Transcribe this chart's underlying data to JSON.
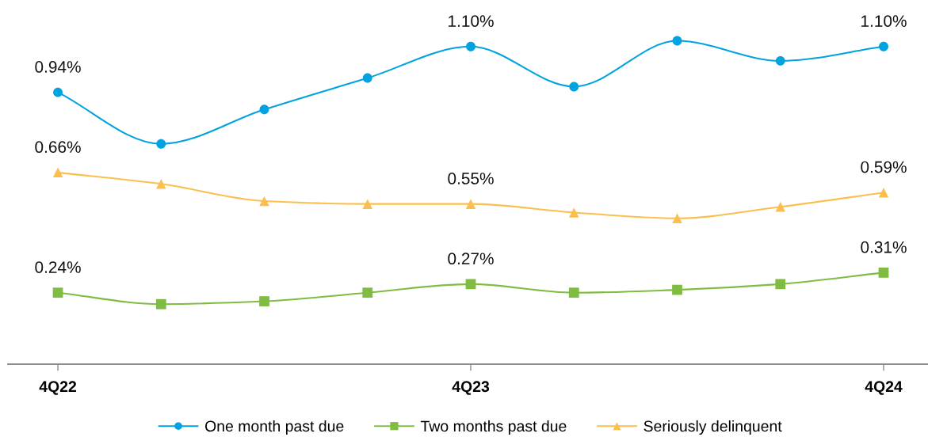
{
  "chart_data": {
    "type": "line",
    "categories": [
      "4Q22",
      null,
      null,
      null,
      "4Q23",
      null,
      null,
      null,
      "4Q24"
    ],
    "series": [
      {
        "name": "One month past due",
        "color": "#00a3e0",
        "marker": "circle",
        "values": [
          0.94,
          0.76,
          0.88,
          0.99,
          1.1,
          0.96,
          1.12,
          1.05,
          1.1
        ],
        "value_labels": [
          "0.94%",
          null,
          null,
          null,
          "1.10%",
          null,
          null,
          null,
          "1.10%"
        ]
      },
      {
        "name": "Two months past due",
        "color": "#80bc42",
        "marker": "square",
        "values": [
          0.24,
          0.2,
          0.21,
          0.24,
          0.27,
          0.24,
          0.25,
          0.27,
          0.31
        ],
        "value_labels": [
          "0.24%",
          null,
          null,
          null,
          "0.27%",
          null,
          null,
          null,
          "0.31%"
        ]
      },
      {
        "name": "Seriously delinquent",
        "color": "#fbbf4f",
        "marker": "triangle",
        "values": [
          0.66,
          0.62,
          0.56,
          0.55,
          0.55,
          0.52,
          0.5,
          0.54,
          0.59
        ],
        "value_labels": [
          "0.66%",
          null,
          null,
          null,
          "0.55%",
          null,
          null,
          null,
          "0.59%"
        ]
      }
    ],
    "legend": "bottom",
    "line_style": "solid",
    "tick_labels": "x"
  }
}
